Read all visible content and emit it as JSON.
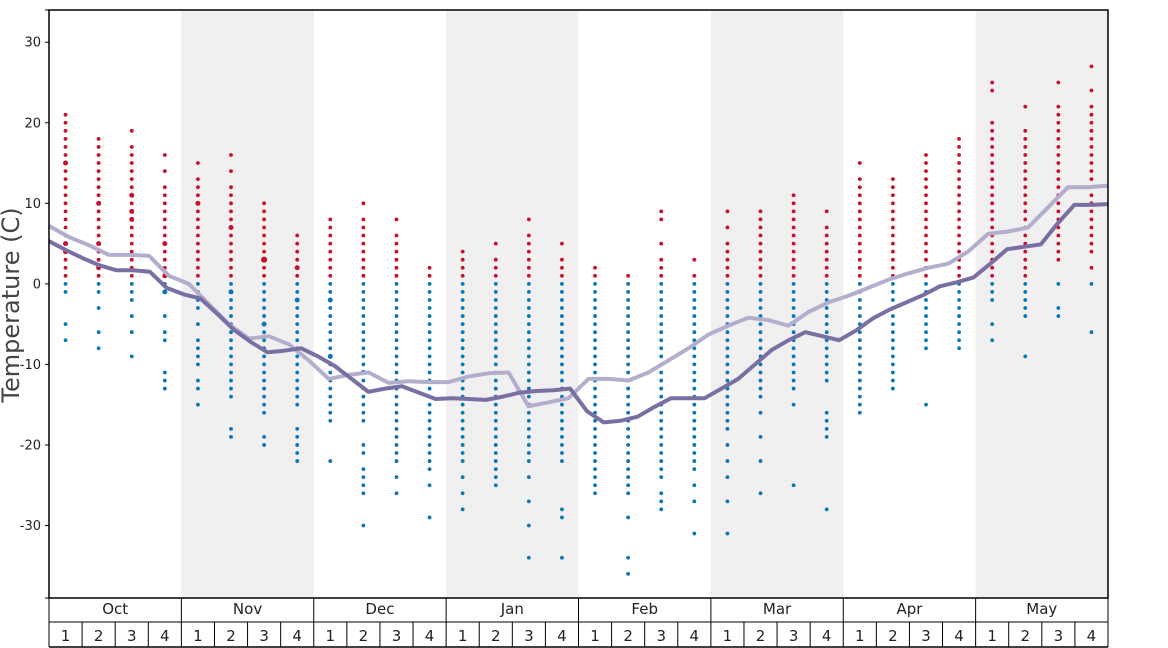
{
  "chart_data": {
    "type": "scatter",
    "ylabel": "Temperature (C)",
    "ylim": [
      -39,
      34
    ],
    "y_ticks": [
      30,
      20,
      10,
      0,
      -10,
      -20,
      -30
    ],
    "y_tick_labels": [
      "30",
      "20",
      "10",
      "0",
      "-10",
      "-20",
      "-30"
    ],
    "months": [
      "Oct",
      "Nov",
      "Dec",
      "Jan",
      "Feb",
      "Mar",
      "Apr",
      "May"
    ],
    "weeks": [
      "1",
      "2",
      "3",
      "4"
    ],
    "shaded_months": [
      "Nov",
      "Jan",
      "Mar",
      "May"
    ],
    "colors": {
      "warm_dot": "#c8102e",
      "cold_dot": "#0a76b5",
      "line_light": "#b3aecd",
      "line_dark": "#7a6fa3",
      "shade": "#f0f0f0",
      "frame": "#000000"
    },
    "series": [
      {
        "values": [
          7.2,
          5.8,
          4.8,
          3.6,
          3.6,
          3.5,
          1.0,
          0.0,
          -2.5,
          -5.0,
          -6.8,
          -6.5,
          -7.5,
          -9.5,
          -11.8,
          -11.3,
          -11.0,
          -12.3,
          -12.1,
          -12.2,
          -12.2,
          -11.5,
          -11.1,
          -11.0,
          -15.2,
          -14.7,
          -14.2,
          -11.8,
          -11.8,
          -12.0,
          -11.0,
          -9.5,
          -8.0,
          -6.3,
          -5.2,
          -4.2,
          -4.5,
          -5.2,
          -3.5,
          -2.3,
          -1.5,
          -0.5,
          0.5,
          1.3,
          2.0,
          2.5,
          4.0,
          6.2,
          6.5,
          7.0,
          9.5,
          12.0,
          12.0,
          12.2
        ],
        "x": [
          0,
          0.5,
          1,
          1.5,
          2,
          2.5,
          3,
          3.5,
          4,
          4.5,
          5,
          5.5,
          6,
          6.5,
          7,
          7.5,
          8,
          8.5,
          9,
          9.5,
          10,
          10.5,
          11,
          11.5,
          12,
          12.5,
          13,
          13.5,
          14,
          14.5,
          15,
          15.5,
          16,
          16.5,
          17,
          17.5,
          18,
          18.5,
          19,
          19.5,
          20,
          20.5,
          21,
          21.5,
          22,
          22.5,
          23,
          23.5,
          24,
          24.5,
          25,
          25.5,
          26,
          26.5
        ],
        "color_role": "line_light"
      },
      {
        "values": [
          5.3,
          4.2,
          3.2,
          2.3,
          1.7,
          1.7,
          1.5,
          -0.5,
          -1.3,
          -1.8,
          -3.7,
          -5.7,
          -7.2,
          -8.5,
          -8.3,
          -8.0,
          -9.0,
          -10.2,
          -11.8,
          -13.4,
          -13.0,
          -12.7,
          -13.5,
          -14.3,
          -14.2,
          -14.3,
          -14.4,
          -14.0,
          -13.5,
          -13.3,
          -13.2,
          -13.0,
          -15.8,
          -17.2,
          -17.0,
          -16.5,
          -15.3,
          -14.2,
          -14.2,
          -14.2,
          -13.0,
          -11.8,
          -10.0,
          -8.2,
          -7.0,
          -6.0,
          -6.5,
          -7.0,
          -5.8,
          -4.3,
          -3.2,
          -2.3,
          -1.4,
          -0.3,
          0.2,
          0.8,
          2.5,
          4.3,
          4.6,
          4.9,
          7.5,
          9.8,
          9.8,
          9.9
        ],
        "x": [
          0,
          0.5,
          1,
          1.5,
          2,
          2.5,
          3,
          3.5,
          4,
          4.5,
          5,
          5.5,
          6,
          6.5,
          7,
          7.5,
          8,
          8.5,
          9,
          9.5,
          10,
          10.5,
          11,
          11.5,
          12,
          12.5,
          13,
          13.5,
          14,
          14.5,
          15,
          15.5,
          16,
          16.5,
          17,
          17.5,
          18,
          18.5,
          19,
          19.5,
          20,
          20.5,
          21,
          21.5,
          22,
          22.5,
          23,
          23.5,
          24,
          24.5,
          25,
          25.5,
          26,
          26.5,
          27,
          27.5,
          28,
          28.5,
          29,
          29.5,
          30,
          30.5,
          31,
          31.5
        ],
        "color_role": "line_dark"
      }
    ],
    "weekly_temps": [
      [
        21,
        20,
        19,
        18,
        17,
        16,
        15,
        15,
        14,
        13,
        12,
        11,
        10,
        9,
        8,
        7,
        6,
        5,
        5,
        4,
        4,
        3,
        2,
        1,
        0,
        -1,
        -5,
        -7
      ],
      [
        18,
        17,
        16,
        15,
        14,
        13,
        12,
        11,
        10,
        10,
        9,
        8,
        7,
        6,
        5,
        5,
        4,
        3,
        2,
        2,
        1,
        0,
        -1,
        -3,
        -6,
        -8
      ],
      [
        19,
        17,
        16,
        15,
        14,
        13,
        12,
        11,
        11,
        10,
        9,
        9,
        8,
        8,
        7,
        6,
        5,
        4,
        3,
        2,
        1,
        0,
        -1,
        -2,
        -4,
        -6,
        -9
      ],
      [
        16,
        14,
        12,
        11,
        10,
        9,
        8,
        7,
        6,
        5,
        5,
        4,
        3,
        2,
        1,
        1,
        0,
        -1,
        -1,
        -4,
        -6,
        -7,
        -11,
        -12,
        -13
      ],
      [
        15,
        13,
        12,
        11,
        10,
        10,
        9,
        8,
        7,
        6,
        5,
        4,
        3,
        2,
        1,
        0,
        -1,
        -2,
        -3,
        -5,
        -7,
        -8,
        -9,
        -10,
        -12,
        -13,
        -15
      ],
      [
        16,
        14,
        12,
        11,
        10,
        9,
        8,
        7,
        7,
        6,
        5,
        4,
        3,
        2,
        1,
        0,
        -1,
        -1,
        -2,
        -3,
        -4,
        -5,
        -6,
        -7,
        -8,
        -9,
        -10,
        -11,
        -12,
        -13,
        -14,
        -18,
        -19
      ],
      [
        10,
        9,
        8,
        7,
        6,
        5,
        4,
        3,
        3,
        3,
        2,
        1,
        0,
        -1,
        -2,
        -3,
        -4,
        -5,
        -5,
        -6,
        -7,
        -8,
        -9,
        -10,
        -11,
        -12,
        -13,
        -14,
        -15,
        -16,
        -19,
        -20
      ],
      [
        6,
        5,
        4,
        3,
        2,
        2,
        1,
        0,
        -1,
        -2,
        -2,
        -3,
        -4,
        -5,
        -6,
        -7,
        -8,
        -9,
        -10,
        -11,
        -12,
        -13,
        -14,
        -15,
        -18,
        -19,
        -20,
        -21,
        -22
      ],
      [
        8,
        7,
        6,
        5,
        4,
        3,
        2,
        1,
        0,
        -1,
        -2,
        -2,
        -3,
        -4,
        -5,
        -6,
        -7,
        -8,
        -9,
        -9,
        -10,
        -11,
        -12,
        -13,
        -14,
        -15,
        -16,
        -17,
        -22
      ],
      [
        10,
        8,
        7,
        6,
        5,
        4,
        3,
        2,
        1,
        0,
        -1,
        -2,
        -3,
        -4,
        -5,
        -6,
        -7,
        -8,
        -9,
        -10,
        -11,
        -11,
        -12,
        -13,
        -14,
        -15,
        -16,
        -17,
        -20,
        -21,
        -23,
        -24,
        -25,
        -26,
        -30
      ],
      [
        8,
        6,
        5,
        4,
        3,
        2,
        1,
        0,
        -1,
        -2,
        -3,
        -4,
        -5,
        -6,
        -7,
        -8,
        -9,
        -10,
        -11,
        -12,
        -13,
        -14,
        -15,
        -16,
        -17,
        -18,
        -19,
        -20,
        -21,
        -22,
        -24,
        -26
      ],
      [
        2,
        1,
        0,
        -1,
        -2,
        -3,
        -4,
        -5,
        -6,
        -7,
        -8,
        -9,
        -10,
        -11,
        -12,
        -13,
        -14,
        -15,
        -16,
        -17,
        -18,
        -19,
        -20,
        -21,
        -22,
        -23,
        -25,
        -29
      ],
      [
        4,
        3,
        2,
        1,
        0,
        -1,
        -2,
        -3,
        -4,
        -5,
        -6,
        -7,
        -8,
        -9,
        -10,
        -11,
        -12,
        -13,
        -14,
        -15,
        -16,
        -17,
        -18,
        -19,
        -20,
        -21,
        -22,
        -24,
        -26,
        -28
      ],
      [
        5,
        3,
        2,
        1,
        0,
        -1,
        -2,
        -3,
        -4,
        -5,
        -6,
        -7,
        -8,
        -9,
        -10,
        -11,
        -12,
        -13,
        -14,
        -15,
        -16,
        -17,
        -18,
        -19,
        -20,
        -21,
        -22,
        -23,
        -24,
        -25
      ],
      [
        8,
        6,
        5,
        4,
        3,
        2,
        1,
        0,
        -1,
        -2,
        -3,
        -4,
        -5,
        -6,
        -7,
        -8,
        -9,
        -10,
        -11,
        -12,
        -13,
        -14,
        -15,
        -16,
        -17,
        -18,
        -19,
        -20,
        -21,
        -22,
        -24,
        -27,
        -30,
        -34
      ],
      [
        5,
        3,
        2,
        1,
        0,
        -1,
        -2,
        -3,
        -4,
        -5,
        -6,
        -7,
        -8,
        -9,
        -10,
        -11,
        -12,
        -13,
        -14,
        -15,
        -16,
        -17,
        -18,
        -19,
        -20,
        -21,
        -22,
        -28,
        -29,
        -34
      ],
      [
        2,
        1,
        0,
        -1,
        -2,
        -3,
        -4,
        -5,
        -6,
        -7,
        -8,
        -9,
        -10,
        -11,
        -12,
        -13,
        -14,
        -15,
        -16,
        -17,
        -18,
        -19,
        -20,
        -21,
        -22,
        -23,
        -24,
        -25,
        -26
      ],
      [
        1,
        0,
        -1,
        -2,
        -3,
        -4,
        -5,
        -6,
        -7,
        -8,
        -9,
        -10,
        -11,
        -12,
        -13,
        -14,
        -15,
        -16,
        -17,
        -18,
        -19,
        -20,
        -21,
        -22,
        -23,
        -24,
        -25,
        -26,
        -29,
        -34,
        -36
      ],
      [
        9,
        8,
        5,
        3,
        2,
        1,
        0,
        -1,
        -2,
        -3,
        -4,
        -5,
        -6,
        -7,
        -8,
        -9,
        -10,
        -11,
        -12,
        -13,
        -14,
        -15,
        -16,
        -17,
        -18,
        -19,
        -20,
        -21,
        -22,
        -23,
        -24,
        -26,
        -27,
        -28
      ],
      [
        3,
        1,
        0,
        -1,
        -2,
        -3,
        -4,
        -5,
        -6,
        -7,
        -8,
        -9,
        -10,
        -11,
        -12,
        -13,
        -14,
        -15,
        -16,
        -17,
        -18,
        -19,
        -20,
        -21,
        -22,
        -23,
        -25,
        -27,
        -31
      ],
      [
        9,
        7,
        5,
        4,
        3,
        2,
        1,
        0,
        -1,
        -2,
        -3,
        -4,
        -5,
        -6,
        -7,
        -8,
        -9,
        -10,
        -11,
        -12,
        -13,
        -14,
        -15,
        -16,
        -17,
        -18,
        -20,
        -22,
        -24,
        -27,
        -31
      ],
      [
        9,
        8,
        7,
        6,
        5,
        4,
        3,
        2,
        1,
        0,
        -1,
        -2,
        -3,
        -4,
        -5,
        -6,
        -7,
        -8,
        -9,
        -10,
        -11,
        -12,
        -13,
        -14,
        -16,
        -19,
        -22,
        -26
      ],
      [
        11,
        10,
        9,
        8,
        7,
        6,
        5,
        4,
        3,
        2,
        1,
        0,
        -1,
        -2,
        -3,
        -4,
        -5,
        -6,
        -7,
        -8,
        -9,
        -10,
        -11,
        -12,
        -13,
        -15,
        -25
      ],
      [
        9,
        7,
        6,
        5,
        4,
        3,
        2,
        1,
        0,
        -1,
        -2,
        -3,
        -4,
        -5,
        -6,
        -7,
        -8,
        -9,
        -10,
        -11,
        -12,
        -16,
        -17,
        -18,
        -19,
        -28
      ],
      [
        15,
        13,
        12,
        11,
        10,
        9,
        8,
        7,
        6,
        5,
        4,
        3,
        2,
        1,
        0,
        -1,
        -2,
        -3,
        -4,
        -5,
        -6,
        -7,
        -8,
        -9,
        -10,
        -11,
        -12,
        -13,
        -14,
        -15,
        -16
      ],
      [
        13,
        12,
        11,
        10,
        9,
        8,
        7,
        6,
        5,
        4,
        3,
        2,
        1,
        0,
        -1,
        -2,
        -3,
        -4,
        -5,
        -6,
        -7,
        -8,
        -9,
        -10,
        -11,
        -12,
        -13
      ],
      [
        16,
        15,
        14,
        13,
        12,
        11,
        10,
        9,
        8,
        7,
        6,
        5,
        4,
        3,
        2,
        1,
        0,
        -1,
        -2,
        -3,
        -4,
        -5,
        -6,
        -7,
        -8,
        -15
      ],
      [
        18,
        17,
        16,
        15,
        14,
        13,
        12,
        11,
        10,
        9,
        8,
        7,
        6,
        5,
        4,
        3,
        2,
        1,
        0,
        -1,
        -2,
        -3,
        -4,
        -5,
        -6,
        -7,
        -8
      ],
      [
        25,
        24,
        20,
        19,
        18,
        17,
        16,
        15,
        14,
        13,
        12,
        11,
        10,
        9,
        8,
        7,
        6,
        5,
        4,
        3,
        2,
        1,
        0,
        -1,
        -2,
        -5,
        -7
      ],
      [
        22,
        19,
        18,
        17,
        16,
        15,
        14,
        13,
        12,
        11,
        10,
        9,
        8,
        7,
        6,
        5,
        4,
        3,
        2,
        1,
        0,
        -1,
        -2,
        -3,
        -4,
        -9
      ],
      [
        25,
        22,
        21,
        20,
        19,
        18,
        17,
        16,
        15,
        14,
        13,
        12,
        11,
        10,
        9,
        8,
        7,
        6,
        5,
        4,
        3,
        0,
        -3,
        -4
      ],
      [
        27,
        24,
        22,
        21,
        20,
        19,
        18,
        17,
        16,
        15,
        14,
        13,
        12,
        11,
        10,
        9,
        8,
        7,
        6,
        5,
        4,
        2,
        0,
        -6
      ]
    ]
  }
}
